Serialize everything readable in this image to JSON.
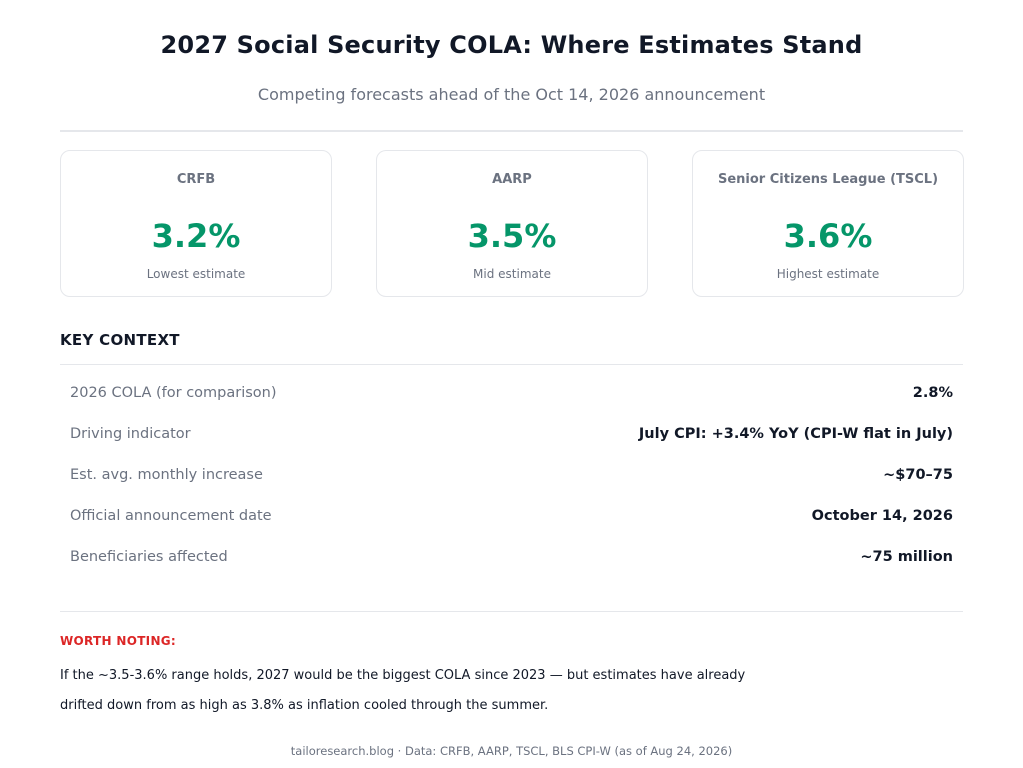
{
  "header": {
    "title": "2027 Social Security COLA: Where Estimates Stand",
    "subtitle": "Competing forecasts ahead of the Oct 14, 2026 announcement"
  },
  "cards": [
    {
      "name": "CRFB",
      "value": "3.2%",
      "note": "Lowest estimate"
    },
    {
      "name": "AARP",
      "value": "3.5%",
      "note": "Mid estimate"
    },
    {
      "name": "Senior Citizens League (TSCL)",
      "value": "3.6%",
      "note": "Highest estimate"
    }
  ],
  "context": {
    "title": "KEY CONTEXT",
    "rows": [
      {
        "label": "2026 COLA (for comparison)",
        "value": "2.8%"
      },
      {
        "label": "Driving indicator",
        "value": "July CPI: +3.4% YoY (CPI-W flat in July)"
      },
      {
        "label": "Est. avg. monthly increase",
        "value": "~$70–75"
      },
      {
        "label": "Official announcement date",
        "value": "October 14, 2026"
      },
      {
        "label": "Beneficiaries affected",
        "value": "~75 million"
      }
    ]
  },
  "note": {
    "label": "WORTH NOTING:",
    "text": "If the ~3.5-3.6% range holds, 2027 would be the biggest COLA since 2023 — but estimates have already drifted down from as high as 3.8% as inflation cooled through the summer."
  },
  "footer": {
    "text": "tailoresearch.blog  ·  Data: CRFB, AARP, TSCL, BLS CPI-W (as of Aug 24, 2026)"
  },
  "colors": {
    "accent_green": "#059669",
    "warning_red": "#dc2626"
  }
}
